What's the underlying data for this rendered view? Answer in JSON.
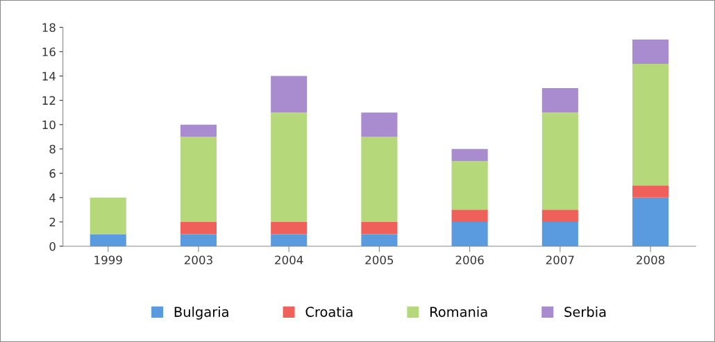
{
  "chart_data": {
    "type": "bar",
    "stacked": true,
    "categories": [
      "1999",
      "2003",
      "2004",
      "2005",
      "2006",
      "2007",
      "2008"
    ],
    "series": [
      {
        "name": "Bulgaria",
        "color": "#5a9be0",
        "values": [
          1,
          1,
          1,
          1,
          2,
          2,
          4
        ]
      },
      {
        "name": "Croatia",
        "color": "#f0605a",
        "values": [
          0,
          1,
          1,
          1,
          1,
          1,
          1
        ]
      },
      {
        "name": "Romania",
        "color": "#b5d97a",
        "values": [
          3,
          7,
          9,
          7,
          4,
          8,
          10
        ]
      },
      {
        "name": "Serbia",
        "color": "#a88ccf",
        "values": [
          0,
          1,
          3,
          2,
          1,
          2,
          2
        ]
      }
    ],
    "ylim": [
      0,
      18
    ],
    "yticks": [
      0,
      2,
      4,
      6,
      8,
      10,
      12,
      14,
      16,
      18
    ],
    "grid": false,
    "legend": "bottom"
  }
}
